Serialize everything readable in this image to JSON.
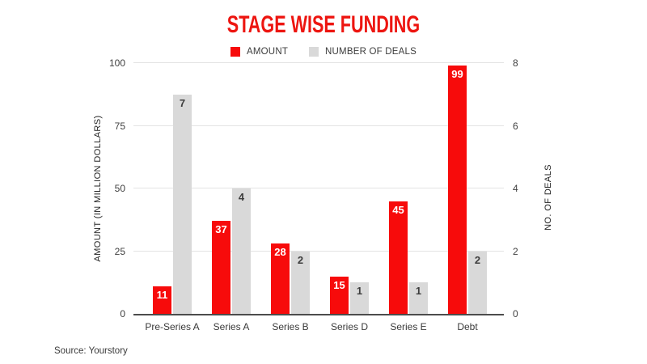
{
  "source": "Source: Yourstory",
  "legend": {
    "amount": "AMOUNT",
    "deals": "NUMBER OF DEALS"
  },
  "colors": {
    "title_red": "#ed1510",
    "bar_red": "#f70b0b",
    "bar_gray": "#d9d9d9",
    "gridline": "#e3e3e3",
    "axis_line": "#4c4c4c",
    "text_dark": "#3c3c3c"
  },
  "chart_data": {
    "type": "bar",
    "title": "STAGE WISE FUNDING",
    "categories": [
      "Pre-Series A",
      "Series A",
      "Series B",
      "Series D",
      "Series E",
      "Debt"
    ],
    "series": [
      {
        "name": "AMOUNT",
        "axis": "left",
        "color": "#f70b0b",
        "value_color": "#ffffff",
        "values": [
          11,
          37,
          28,
          15,
          45,
          99
        ]
      },
      {
        "name": "NUMBER OF DEALS",
        "axis": "right",
        "color": "#d9d9d9",
        "value_color": "#3d3d3d",
        "values": [
          7,
          4,
          2,
          1,
          1,
          2
        ]
      }
    ],
    "xlabel": "",
    "ylabel_left": "AMOUNT (IN MILLION DOLLARS)",
    "ylabel_right": "NO. OF DEALS",
    "yticks_left": [
      0,
      25,
      50,
      75,
      100
    ],
    "yticks_right": [
      0,
      2,
      4,
      6,
      8
    ],
    "ylim_left": [
      0,
      100
    ],
    "ylim_right": [
      0,
      8
    ],
    "grid": true,
    "legend_position": "top",
    "data_labels": "inside-top"
  }
}
